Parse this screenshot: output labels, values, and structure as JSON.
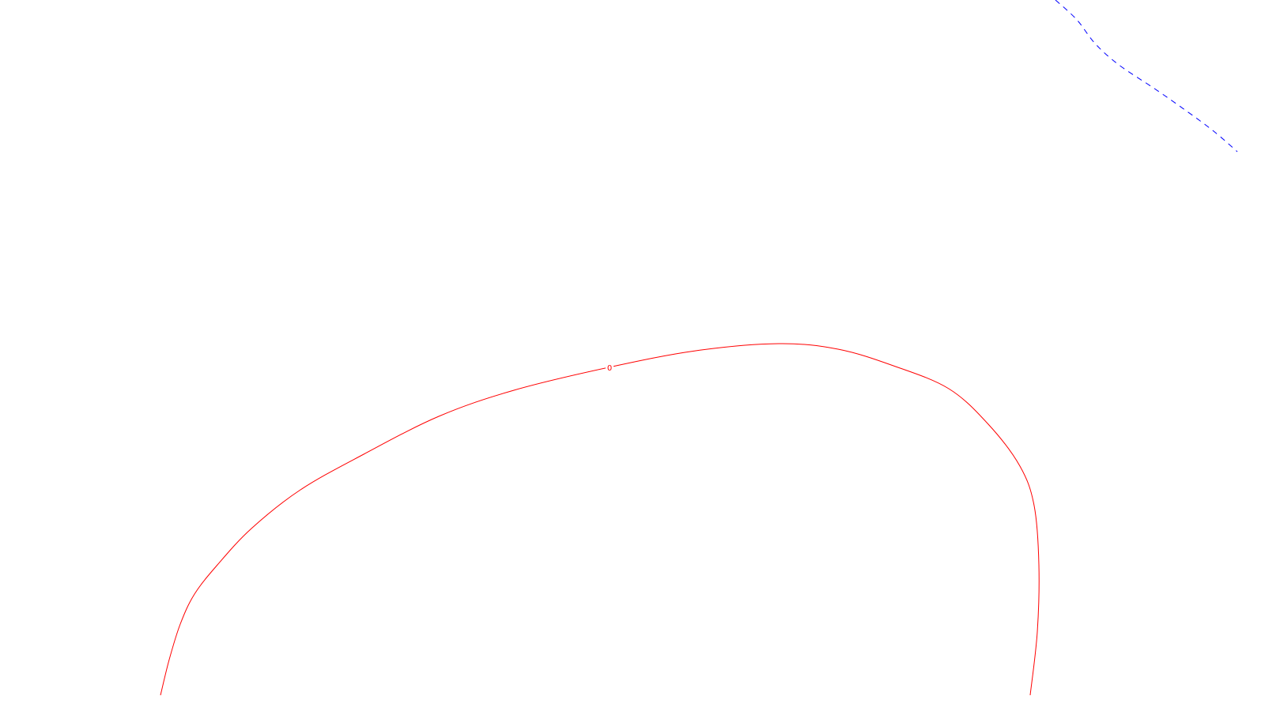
{
  "chart_data": {
    "type": "contour",
    "title": "",
    "xlabel": "",
    "ylabel": "",
    "grid": false,
    "legend": false,
    "contours": [
      {
        "level_label": "0",
        "color": "#ff0000",
        "line_style": "solid",
        "points": [
          [
            203,
            880
          ],
          [
            214,
            835
          ],
          [
            228,
            790
          ],
          [
            246,
            752
          ],
          [
            275,
            715
          ],
          [
            318,
            669
          ],
          [
            380,
            620
          ],
          [
            460,
            575
          ],
          [
            555,
            527
          ],
          [
            650,
            494
          ],
          [
            770,
            465
          ],
          [
            880,
            444
          ],
          [
            985,
            435
          ],
          [
            1060,
            442
          ],
          [
            1130,
            463
          ],
          [
            1200,
            492
          ],
          [
            1250,
            537
          ],
          [
            1290,
            590
          ],
          [
            1308,
            640
          ],
          [
            1314,
            715
          ],
          [
            1312,
            800
          ],
          [
            1303,
            880
          ]
        ],
        "label_point": [
          771,
          465
        ]
      },
      {
        "level_label": "",
        "color": "#0000ff",
        "line_style": "dashed",
        "points": [
          [
            1335,
            0
          ],
          [
            1362,
            25
          ],
          [
            1385,
            55
          ],
          [
            1415,
            82
          ],
          [
            1460,
            112
          ],
          [
            1500,
            140
          ],
          [
            1535,
            166
          ],
          [
            1565,
            192
          ]
        ]
      }
    ]
  }
}
